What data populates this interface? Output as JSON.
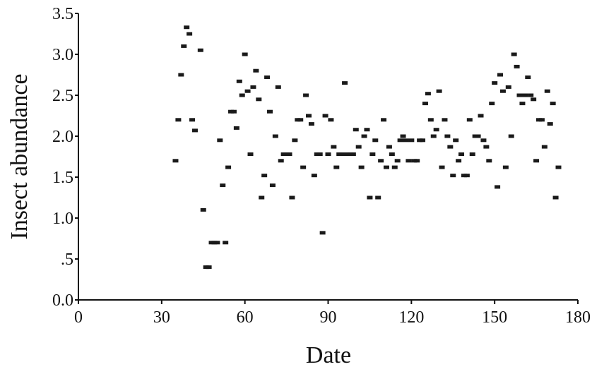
{
  "chart_data": {
    "type": "scatter",
    "title": "",
    "xlabel": "Date",
    "ylabel": "Insect abundance",
    "xlim": [
      0,
      180
    ],
    "ylim": [
      0,
      3.5
    ],
    "x_ticks": [
      0,
      30,
      60,
      90,
      120,
      150,
      180
    ],
    "x_tick_labels": [
      "0",
      "30",
      "60",
      "90",
      "120",
      "150",
      "180"
    ],
    "y_ticks": [
      0,
      0.5,
      1.0,
      1.5,
      2.0,
      2.5,
      3.0,
      3.5
    ],
    "y_tick_labels": [
      "0.0",
      ".5",
      "1.0",
      "1.5",
      "2.0",
      "2.5",
      "3.0",
      "3.5"
    ],
    "grid": false,
    "legend": "none",
    "marker_color": "#1a1a1a",
    "series": [
      {
        "x": [
          35,
          36,
          37,
          38,
          39,
          40,
          41,
          42,
          44,
          45,
          46,
          47,
          48,
          49,
          50,
          51,
          52,
          53,
          54,
          55,
          56,
          57,
          58,
          59,
          60,
          61,
          62,
          63,
          64,
          65,
          66,
          67,
          68,
          69,
          70,
          71,
          72,
          73,
          74,
          75,
          76,
          77,
          78,
          79,
          80,
          81,
          82,
          83,
          84,
          85,
          86,
          87,
          88,
          89,
          90,
          91,
          92,
          93,
          94,
          95,
          96,
          97,
          98,
          99,
          100,
          101,
          102,
          103,
          104,
          105,
          106,
          107,
          108,
          109,
          110,
          111,
          112,
          113,
          114,
          115,
          116,
          117,
          118,
          119,
          120,
          121,
          122,
          123,
          124,
          125,
          126,
          127,
          128,
          129,
          130,
          131,
          132,
          133,
          134,
          135,
          136,
          137,
          138,
          139,
          140,
          141,
          142,
          143,
          144,
          145,
          146,
          147,
          148,
          149,
          150,
          151,
          152,
          153,
          154,
          155,
          156,
          157,
          158,
          159,
          160,
          161,
          162,
          163,
          164,
          165,
          166,
          167,
          168,
          169,
          170,
          171,
          172,
          173
        ],
        "y": [
          1.7,
          2.2,
          2.75,
          3.1,
          3.33,
          3.25,
          2.2,
          2.07,
          3.05,
          1.1,
          0.4,
          0.4,
          0.7,
          0.7,
          0.7,
          1.95,
          1.4,
          0.7,
          1.62,
          2.3,
          2.3,
          2.1,
          2.67,
          2.5,
          3.0,
          2.55,
          1.78,
          2.6,
          2.8,
          2.45,
          1.25,
          1.52,
          2.72,
          2.3,
          1.4,
          2.0,
          2.6,
          1.7,
          1.78,
          1.78,
          1.78,
          1.25,
          1.95,
          2.2,
          2.2,
          1.62,
          2.5,
          2.25,
          2.15,
          1.52,
          1.78,
          1.78,
          0.82,
          2.25,
          1.78,
          2.2,
          1.87,
          1.62,
          1.78,
          1.78,
          2.65,
          1.78,
          1.78,
          1.78,
          2.08,
          1.87,
          1.62,
          2.0,
          2.08,
          1.25,
          1.78,
          1.95,
          1.25,
          1.7,
          2.2,
          1.62,
          1.87,
          1.78,
          1.62,
          1.7,
          1.95,
          2.0,
          1.95,
          1.7,
          1.95,
          1.7,
          1.7,
          1.95,
          1.95,
          2.4,
          2.52,
          2.2,
          2.0,
          2.08,
          2.55,
          1.62,
          2.2,
          2.0,
          1.87,
          1.52,
          1.95,
          1.7,
          1.78,
          1.52,
          1.52,
          2.2,
          1.78,
          2.0,
          2.0,
          2.25,
          1.95,
          1.87,
          1.7,
          2.4,
          2.65,
          1.38,
          2.75,
          2.55,
          1.62,
          2.6,
          2.0,
          3.0,
          2.85,
          2.5,
          2.4,
          2.5,
          2.72,
          2.5,
          2.45,
          1.7,
          2.2,
          2.2,
          1.87,
          2.55,
          2.15,
          2.4,
          1.25,
          1.62
        ]
      }
    ]
  }
}
